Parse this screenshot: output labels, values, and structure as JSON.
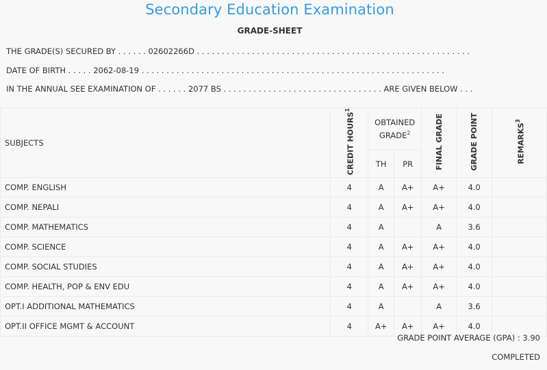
{
  "title": "Secondary Education Examination",
  "subtitle": "GRADE-SHEET",
  "info": {
    "line1": "THE GRADE(S) SECURED BY . . . . . . 02602266D . . . . . . . . . . . . . . . . . . . . . . . . . . . . . . . . . . . . . . . . . . . . . . . . . . . . . . .",
    "line2": "DATE OF BIRTH . . . . . 2062-08-19 . . . . . . . . . . . . . . . . . . . . . . . . . . . . . . . . . . . . . . . . . . . . . . . . . . . . . . . . . . . . .",
    "line3": "IN THE ANNUAL SEE EXAMINATION OF . . . . . . 2077 BS . . . . . . . . . . . . . . . . . . . . . . . . . . . . . . . . ARE GIVEN BELOW . . ."
  },
  "table": {
    "headers": {
      "subjects": "SUBJECTS",
      "credit_hours": "CREDIT HOURS",
      "credit_sup": "1",
      "obtained_grade_1": "OBTAINED",
      "obtained_grade_2": "GRADE",
      "obtained_sup": "2",
      "th": "TH",
      "pr": "PR",
      "final_grade": "FINAL GRADE",
      "grade_point": "GRADE POINT",
      "remarks": "REMARKS",
      "remarks_sup": "3"
    },
    "rows": [
      {
        "subject": "COMP. ENGLISH",
        "credit": "4",
        "th": "A",
        "pr": "A+",
        "final": "A+",
        "gp": "4.0",
        "remarks": ""
      },
      {
        "subject": "COMP. NEPALI",
        "credit": "4",
        "th": "A",
        "pr": "A+",
        "final": "A+",
        "gp": "4.0",
        "remarks": ""
      },
      {
        "subject": "COMP. MATHEMATICS",
        "credit": "4",
        "th": "A",
        "pr": "",
        "final": "A",
        "gp": "3.6",
        "remarks": ""
      },
      {
        "subject": "COMP. SCIENCE",
        "credit": "4",
        "th": "A",
        "pr": "A+",
        "final": "A+",
        "gp": "4.0",
        "remarks": ""
      },
      {
        "subject": "COMP. SOCIAL STUDIES",
        "credit": "4",
        "th": "A",
        "pr": "A+",
        "final": "A+",
        "gp": "4.0",
        "remarks": ""
      },
      {
        "subject": "COMP. HEALTH, POP & ENV EDU",
        "credit": "4",
        "th": "A",
        "pr": "A+",
        "final": "A+",
        "gp": "4.0",
        "remarks": ""
      },
      {
        "subject": "OPT.I ADDITIONAL MATHEMATICS",
        "credit": "4",
        "th": "A",
        "pr": "",
        "final": "A",
        "gp": "3.6",
        "remarks": ""
      },
      {
        "subject": "OPT.II OFFICE MGMT & ACCOUNT",
        "credit": "4",
        "th": "A+",
        "pr": "A+",
        "final": "A+",
        "gp": "4.0",
        "remarks": ""
      }
    ]
  },
  "gpa": "GRADE POINT AVERAGE (GPA) : 3.90",
  "status": "COMPLETED"
}
